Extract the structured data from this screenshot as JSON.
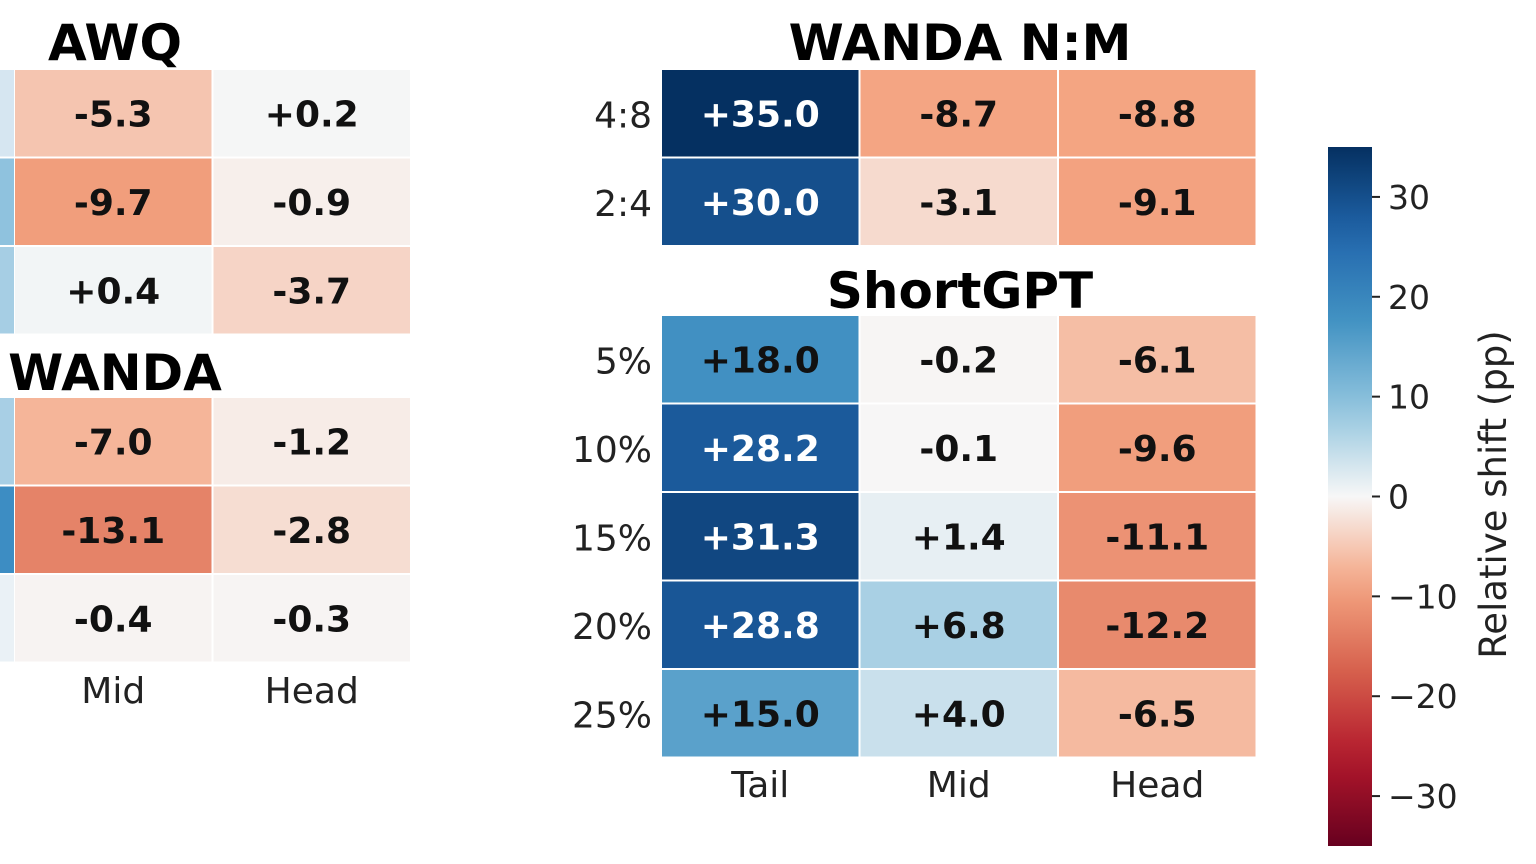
{
  "chart_data": [
    {
      "type": "heatmap",
      "title": "AWQ",
      "columns": [
        "Mid",
        "Head"
      ],
      "show_column_labels": false,
      "rows": [
        "",
        "",
        ""
      ],
      "values": [
        [
          -5.3,
          0.2
        ],
        [
          -9.7,
          -0.9
        ],
        [
          0.4,
          -3.7
        ]
      ],
      "labels": [
        [
          "-5.3",
          "+0.2"
        ],
        [
          "-9.7",
          "-0.9"
        ],
        [
          "+0.4",
          "-3.7"
        ]
      ],
      "clipped_left_colors": [
        "#d6e6f1",
        "#8fc2de",
        "#a6cee4"
      ]
    },
    {
      "type": "heatmap",
      "title": "WANDA",
      "columns": [
        "Mid",
        "Head"
      ],
      "show_column_labels": true,
      "rows": [
        "",
        "",
        ""
      ],
      "values": [
        [
          -7.0,
          -1.2
        ],
        [
          -13.1,
          -2.8
        ],
        [
          -0.4,
          -0.3
        ]
      ],
      "labels": [
        [
          "-7.0",
          "-1.2"
        ],
        [
          "-13.1",
          "-2.8"
        ],
        [
          "-0.4",
          "-0.3"
        ]
      ],
      "clipped_left_colors": [
        "#a8cfe5",
        "#3d8dc3",
        "#eaf1f6"
      ]
    },
    {
      "type": "heatmap",
      "title": "WANDA N:M",
      "columns": [
        "Tail",
        "Mid",
        "Head"
      ],
      "show_column_labels": false,
      "rows": [
        "4:8",
        "2:4"
      ],
      "values": [
        [
          35.0,
          -8.7,
          -8.8
        ],
        [
          30.0,
          -3.1,
          -9.1
        ]
      ],
      "labels": [
        [
          "+35.0",
          "-8.7",
          "-8.8"
        ],
        [
          "+30.0",
          "-3.1",
          "-9.1"
        ]
      ]
    },
    {
      "type": "heatmap",
      "title": "ShortGPT",
      "columns": [
        "Tail",
        "Mid",
        "Head"
      ],
      "show_column_labels": true,
      "rows": [
        "5%",
        "10%",
        "15%",
        "20%",
        "25%"
      ],
      "values": [
        [
          18.0,
          -0.2,
          -6.1
        ],
        [
          28.2,
          -0.1,
          -9.6
        ],
        [
          31.3,
          1.4,
          -11.1
        ],
        [
          28.8,
          6.8,
          -12.2
        ],
        [
          15.0,
          4.0,
          -6.5
        ]
      ],
      "labels": [
        [
          "+18.0",
          "-0.2",
          "-6.1"
        ],
        [
          "+28.2",
          "-0.1",
          "-9.6"
        ],
        [
          "+31.3",
          "+1.4",
          "-11.1"
        ],
        [
          "+28.8",
          "+6.8",
          "-12.2"
        ],
        [
          "+15.0",
          "+4.0",
          "-6.5"
        ]
      ]
    }
  ],
  "colorbar": {
    "label": "Relative shift (pp)",
    "range": [
      -35,
      35
    ],
    "ticks": [
      30,
      20,
      10,
      0,
      -10,
      -20,
      -30
    ],
    "tick_labels": [
      "30",
      "20",
      "10",
      "0",
      "−10",
      "−20",
      "−30"
    ],
    "colormap": "RdBu"
  }
}
